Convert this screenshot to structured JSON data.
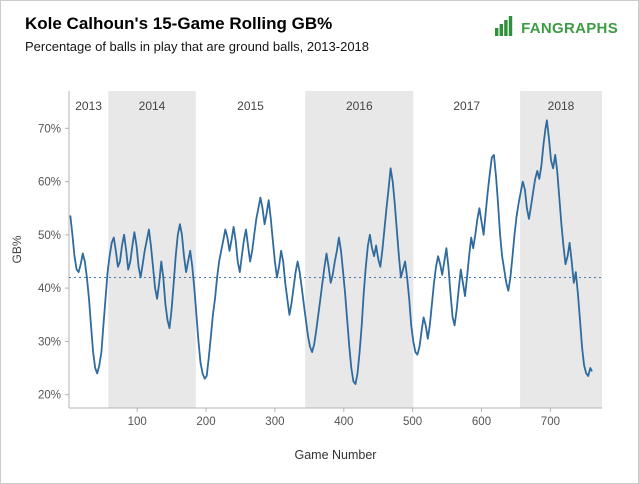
{
  "header": {
    "brand": "FANGRAPHS",
    "brand_color": "#3e9c44"
  },
  "chart_data": {
    "type": "line",
    "title": "Kole Calhoun's 15-Game Rolling GB%",
    "subtitle": "Percentage of balls in play that are ground balls, 2013-2018",
    "xlabel": "Game Number",
    "ylabel": "GB%",
    "xlim": [
      1,
      775
    ],
    "ylim": [
      17.5,
      77
    ],
    "grid": false,
    "legend": "none",
    "line_color": "#2f6b9f",
    "band_color": "#e8e8e8",
    "reference_line": {
      "value": 42,
      "style": "dotted",
      "color": "#4b79a8"
    },
    "yticks": [
      {
        "value": 20,
        "label": "20%"
      },
      {
        "value": 30,
        "label": "30%"
      },
      {
        "value": 40,
        "label": "40%"
      },
      {
        "value": 50,
        "label": "50%"
      },
      {
        "value": 60,
        "label": "60%"
      },
      {
        "value": 70,
        "label": "70%"
      }
    ],
    "xticks": [
      {
        "value": 100,
        "label": "100"
      },
      {
        "value": 200,
        "label": "200"
      },
      {
        "value": 300,
        "label": "300"
      },
      {
        "value": 400,
        "label": "400"
      },
      {
        "value": 500,
        "label": "500"
      },
      {
        "value": 600,
        "label": "600"
      },
      {
        "value": 700,
        "label": "700"
      }
    ],
    "season_bands": [
      {
        "label": "2013",
        "start": 1,
        "end": 58,
        "shaded": false
      },
      {
        "label": "2014",
        "start": 58,
        "end": 185,
        "shaded": true
      },
      {
        "label": "2015",
        "start": 185,
        "end": 344,
        "shaded": false
      },
      {
        "label": "2016",
        "start": 344,
        "end": 501,
        "shaded": true
      },
      {
        "label": "2017",
        "start": 501,
        "end": 656,
        "shaded": false
      },
      {
        "label": "2018",
        "start": 656,
        "end": 775,
        "shaded": true
      }
    ],
    "points": [
      [
        3,
        53.5
      ],
      [
        6,
        50
      ],
      [
        9,
        46
      ],
      [
        12,
        43.5
      ],
      [
        15,
        43
      ],
      [
        18,
        44.5
      ],
      [
        21,
        46.5
      ],
      [
        24,
        45
      ],
      [
        27,
        42
      ],
      [
        30,
        38
      ],
      [
        33,
        33
      ],
      [
        36,
        28
      ],
      [
        39,
        25
      ],
      [
        42,
        24
      ],
      [
        45,
        25.5
      ],
      [
        48,
        28
      ],
      [
        51,
        33
      ],
      [
        54,
        38
      ],
      [
        57,
        43
      ],
      [
        60,
        46
      ],
      [
        63,
        48.5
      ],
      [
        66,
        49.5
      ],
      [
        69,
        47
      ],
      [
        72,
        44
      ],
      [
        75,
        45
      ],
      [
        78,
        48
      ],
      [
        81,
        50
      ],
      [
        84,
        47
      ],
      [
        87,
        43.5
      ],
      [
        90,
        45
      ],
      [
        93,
        48
      ],
      [
        96,
        50.5
      ],
      [
        99,
        48
      ],
      [
        102,
        44
      ],
      [
        105,
        42
      ],
      [
        108,
        44.5
      ],
      [
        111,
        47
      ],
      [
        114,
        49
      ],
      [
        117,
        51
      ],
      [
        120,
        48
      ],
      [
        123,
        44
      ],
      [
        126,
        40
      ],
      [
        129,
        38
      ],
      [
        132,
        41
      ],
      [
        135,
        45
      ],
      [
        138,
        42
      ],
      [
        141,
        37
      ],
      [
        144,
        34
      ],
      [
        147,
        32.5
      ],
      [
        150,
        36
      ],
      [
        153,
        41
      ],
      [
        156,
        46
      ],
      [
        159,
        50
      ],
      [
        162,
        52
      ],
      [
        165,
        50
      ],
      [
        168,
        46
      ],
      [
        171,
        43
      ],
      [
        174,
        45
      ],
      [
        177,
        47
      ],
      [
        180,
        44
      ],
      [
        183,
        40
      ],
      [
        186,
        35
      ],
      [
        189,
        30
      ],
      [
        192,
        26
      ],
      [
        195,
        24
      ],
      [
        198,
        23
      ],
      [
        201,
        23.5
      ],
      [
        204,
        27
      ],
      [
        207,
        31
      ],
      [
        210,
        35
      ],
      [
        213,
        38
      ],
      [
        216,
        42
      ],
      [
        219,
        45
      ],
      [
        222,
        47
      ],
      [
        225,
        49
      ],
      [
        228,
        51
      ],
      [
        231,
        49.5
      ],
      [
        234,
        47
      ],
      [
        237,
        49
      ],
      [
        240,
        51.5
      ],
      [
        243,
        49
      ],
      [
        246,
        45
      ],
      [
        249,
        43
      ],
      [
        252,
        46
      ],
      [
        255,
        49
      ],
      [
        258,
        51
      ],
      [
        261,
        48
      ],
      [
        264,
        45
      ],
      [
        267,
        47
      ],
      [
        270,
        50
      ],
      [
        273,
        53
      ],
      [
        276,
        55
      ],
      [
        279,
        57
      ],
      [
        282,
        55
      ],
      [
        285,
        52
      ],
      [
        288,
        54
      ],
      [
        291,
        56.5
      ],
      [
        294,
        53
      ],
      [
        297,
        49
      ],
      [
        300,
        45
      ],
      [
        303,
        42
      ],
      [
        306,
        44
      ],
      [
        309,
        47
      ],
      [
        312,
        45
      ],
      [
        315,
        41
      ],
      [
        318,
        38
      ],
      [
        321,
        35
      ],
      [
        324,
        37
      ],
      [
        327,
        40
      ],
      [
        330,
        43
      ],
      [
        333,
        45
      ],
      [
        336,
        43
      ],
      [
        339,
        40
      ],
      [
        342,
        37
      ],
      [
        345,
        34
      ],
      [
        348,
        31
      ],
      [
        351,
        29
      ],
      [
        354,
        28
      ],
      [
        357,
        29.5
      ],
      [
        360,
        32
      ],
      [
        363,
        35
      ],
      [
        366,
        38
      ],
      [
        369,
        41
      ],
      [
        372,
        44
      ],
      [
        375,
        46.5
      ],
      [
        378,
        44
      ],
      [
        381,
        41
      ],
      [
        384,
        42.5
      ],
      [
        387,
        45
      ],
      [
        390,
        47
      ],
      [
        393,
        49.5
      ],
      [
        396,
        47
      ],
      [
        399,
        43
      ],
      [
        402,
        39
      ],
      [
        405,
        34
      ],
      [
        408,
        29
      ],
      [
        411,
        25
      ],
      [
        414,
        22.5
      ],
      [
        417,
        22
      ],
      [
        420,
        24
      ],
      [
        423,
        28
      ],
      [
        426,
        33
      ],
      [
        429,
        39
      ],
      [
        432,
        44
      ],
      [
        435,
        48
      ],
      [
        438,
        50
      ],
      [
        441,
        47.5
      ],
      [
        444,
        46
      ],
      [
        447,
        48
      ],
      [
        450,
        45.5
      ],
      [
        453,
        44
      ],
      [
        456,
        47
      ],
      [
        459,
        51
      ],
      [
        462,
        55
      ],
      [
        465,
        58.5
      ],
      [
        468,
        62.5
      ],
      [
        471,
        60
      ],
      [
        474,
        56
      ],
      [
        477,
        51
      ],
      [
        480,
        46
      ],
      [
        483,
        42
      ],
      [
        486,
        43.5
      ],
      [
        489,
        45
      ],
      [
        492,
        42
      ],
      [
        495,
        38
      ],
      [
        498,
        33
      ],
      [
        501,
        30
      ],
      [
        504,
        28
      ],
      [
        507,
        27.5
      ],
      [
        510,
        29
      ],
      [
        513,
        32
      ],
      [
        516,
        34.5
      ],
      [
        519,
        33
      ],
      [
        522,
        30.5
      ],
      [
        525,
        33
      ],
      [
        528,
        37
      ],
      [
        531,
        41
      ],
      [
        534,
        44
      ],
      [
        537,
        46
      ],
      [
        540,
        44.5
      ],
      [
        543,
        42.5
      ],
      [
        546,
        45
      ],
      [
        549,
        47.5
      ],
      [
        552,
        44
      ],
      [
        555,
        39
      ],
      [
        558,
        34.5
      ],
      [
        561,
        33
      ],
      [
        564,
        36
      ],
      [
        567,
        40
      ],
      [
        570,
        43.5
      ],
      [
        573,
        41
      ],
      [
        576,
        38.5
      ],
      [
        579,
        42
      ],
      [
        582,
        46
      ],
      [
        585,
        49.5
      ],
      [
        588,
        47.5
      ],
      [
        591,
        50
      ],
      [
        594,
        53
      ],
      [
        597,
        55
      ],
      [
        600,
        52.5
      ],
      [
        603,
        50
      ],
      [
        606,
        54
      ],
      [
        609,
        58
      ],
      [
        612,
        61.5
      ],
      [
        615,
        64.5
      ],
      [
        618,
        65
      ],
      [
        621,
        61
      ],
      [
        624,
        56
      ],
      [
        627,
        50
      ],
      [
        630,
        46
      ],
      [
        633,
        43.5
      ],
      [
        636,
        41
      ],
      [
        639,
        39.5
      ],
      [
        642,
        42
      ],
      [
        645,
        46
      ],
      [
        648,
        50
      ],
      [
        651,
        53.5
      ],
      [
        654,
        56
      ],
      [
        657,
        58
      ],
      [
        660,
        60
      ],
      [
        663,
        58.5
      ],
      [
        666,
        55
      ],
      [
        669,
        53
      ],
      [
        672,
        55.5
      ],
      [
        675,
        58
      ],
      [
        678,
        60.5
      ],
      [
        681,
        62
      ],
      [
        684,
        60.5
      ],
      [
        687,
        63
      ],
      [
        690,
        67
      ],
      [
        693,
        70
      ],
      [
        695,
        71.5
      ],
      [
        698,
        68
      ],
      [
        701,
        64
      ],
      [
        704,
        62.5
      ],
      [
        707,
        65
      ],
      [
        710,
        62
      ],
      [
        713,
        57
      ],
      [
        716,
        52
      ],
      [
        719,
        48
      ],
      [
        722,
        44.5
      ],
      [
        725,
        46
      ],
      [
        728,
        48.5
      ],
      [
        731,
        45
      ],
      [
        734,
        41
      ],
      [
        737,
        43
      ],
      [
        740,
        39
      ],
      [
        743,
        34
      ],
      [
        746,
        29
      ],
      [
        749,
        25.5
      ],
      [
        752,
        24
      ],
      [
        755,
        23.5
      ],
      [
        758,
        25
      ],
      [
        760,
        24.5
      ]
    ]
  }
}
